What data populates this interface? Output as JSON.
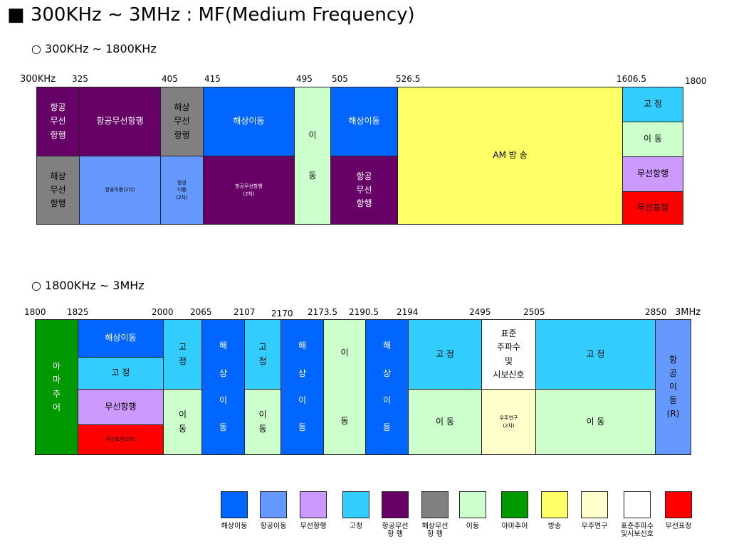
{
  "title": "■ 300KHz ∼ 3MHz : MF(Medium Frequency)",
  "section1": {
    "heading": "○ 300KHz ∼ 1800KHz",
    "ticks": [
      "300KHz",
      "325",
      "405",
      "415",
      "495",
      "505",
      "526.5",
      "1606.5",
      "1800"
    ],
    "blocks": [
      {
        "label": "항공\n무선\n항행",
        "color": "#660066"
      },
      {
        "label": "항공무선항행",
        "color": "#660066"
      },
      {
        "label": "해상\n무선\n항행",
        "color": "#808080"
      },
      {
        "label": "해상이동",
        "color": "#0066ff"
      },
      {
        "label": "이\n\n\n동",
        "color": "#ccffcc"
      },
      {
        "label": "해상이동",
        "color": "#0066ff"
      },
      {
        "label": "AM      방           송",
        "color": "#ffff66"
      },
      {
        "label": "고   정",
        "color": "#33ccff"
      },
      {
        "label": "이   동",
        "color": "#ccffcc"
      },
      {
        "label": "무선항행",
        "color": "#cc99ff"
      },
      {
        "label": "무선표정",
        "color": "#ff0000"
      },
      {
        "label": "해상\n무선\n항행",
        "color": "#808080"
      },
      {
        "label": "항공이동(2차)",
        "color": "#6699ff"
      },
      {
        "label": "항공\n이동\n(2차)",
        "color": "#6699ff"
      },
      {
        "label": "항공무선항행\n(2차)",
        "color": "#660066"
      },
      {
        "label": "항공\n무선\n항행",
        "color": "#660066"
      }
    ]
  },
  "section2": {
    "heading": "○ 1800KHz ∼ 3MHz",
    "ticks": [
      "1800",
      "1825",
      "2000",
      "2065",
      "2107",
      "2170",
      "2173.5",
      "2190.5",
      "2194",
      "2495",
      "2505",
      "2850",
      "3MHz"
    ],
    "blocks": [
      {
        "label": "아\n마\n추\n어",
        "color": "#009900"
      },
      {
        "label": "해상이동",
        "color": "#0066ff"
      },
      {
        "label": "고     정",
        "color": "#33ccff"
      },
      {
        "label": "무선항행",
        "color": "#cc99ff"
      },
      {
        "label": "무선표정(2차)",
        "color": "#ff0000"
      },
      {
        "label": "고\n정",
        "color": "#33ccff"
      },
      {
        "label": "이\n동",
        "color": "#ccffcc"
      },
      {
        "label": "해\n\n상\n\n이\n\n동",
        "color": "#0066ff"
      },
      {
        "label": "고\n정",
        "color": "#33ccff"
      },
      {
        "label": "이\n동",
        "color": "#ccffcc"
      },
      {
        "label": "해\n\n상\n\n이\n\n동",
        "color": "#0066ff"
      },
      {
        "label": "이\n\n\n\n\n동",
        "color": "#ccffcc"
      },
      {
        "label": "해\n\n상\n\n이\n\n동",
        "color": "#0066ff"
      },
      {
        "label": "고   정",
        "color": "#33ccff"
      },
      {
        "label": "이   동",
        "color": "#ccffcc"
      },
      {
        "label": "표준\n주파수\n및\n시보신호",
        "color": "#ffffff"
      },
      {
        "label": "우주연구\n(2차)",
        "color": "#ffffcc"
      },
      {
        "label": "고     정",
        "color": "#33ccff"
      },
      {
        "label": "이     동",
        "color": "#ccffcc"
      },
      {
        "label": "항\n공\n이\n동\n(R)",
        "color": "#6699ff"
      }
    ]
  },
  "legend": [
    {
      "label": "해상이동",
      "color": "#0066ff"
    },
    {
      "label": "항공이동",
      "color": "#6699ff"
    },
    {
      "label": "무선항행",
      "color": "#cc99ff"
    },
    {
      "label": "고정",
      "color": "#33ccff"
    },
    {
      "label": "항공무선\n항    행",
      "color": "#660066"
    },
    {
      "label": "해상무선\n항    행",
      "color": "#808080"
    },
    {
      "label": "이동",
      "color": "#ccffcc"
    },
    {
      "label": "아마추어",
      "color": "#009900"
    },
    {
      "label": "방송",
      "color": "#ffff66"
    },
    {
      "label": "우주연구",
      "color": "#ffffcc"
    },
    {
      "label": "표준주파수\n및시보신호",
      "color": "#ffffff"
    },
    {
      "label": "무선표정",
      "color": "#ff0000"
    }
  ]
}
